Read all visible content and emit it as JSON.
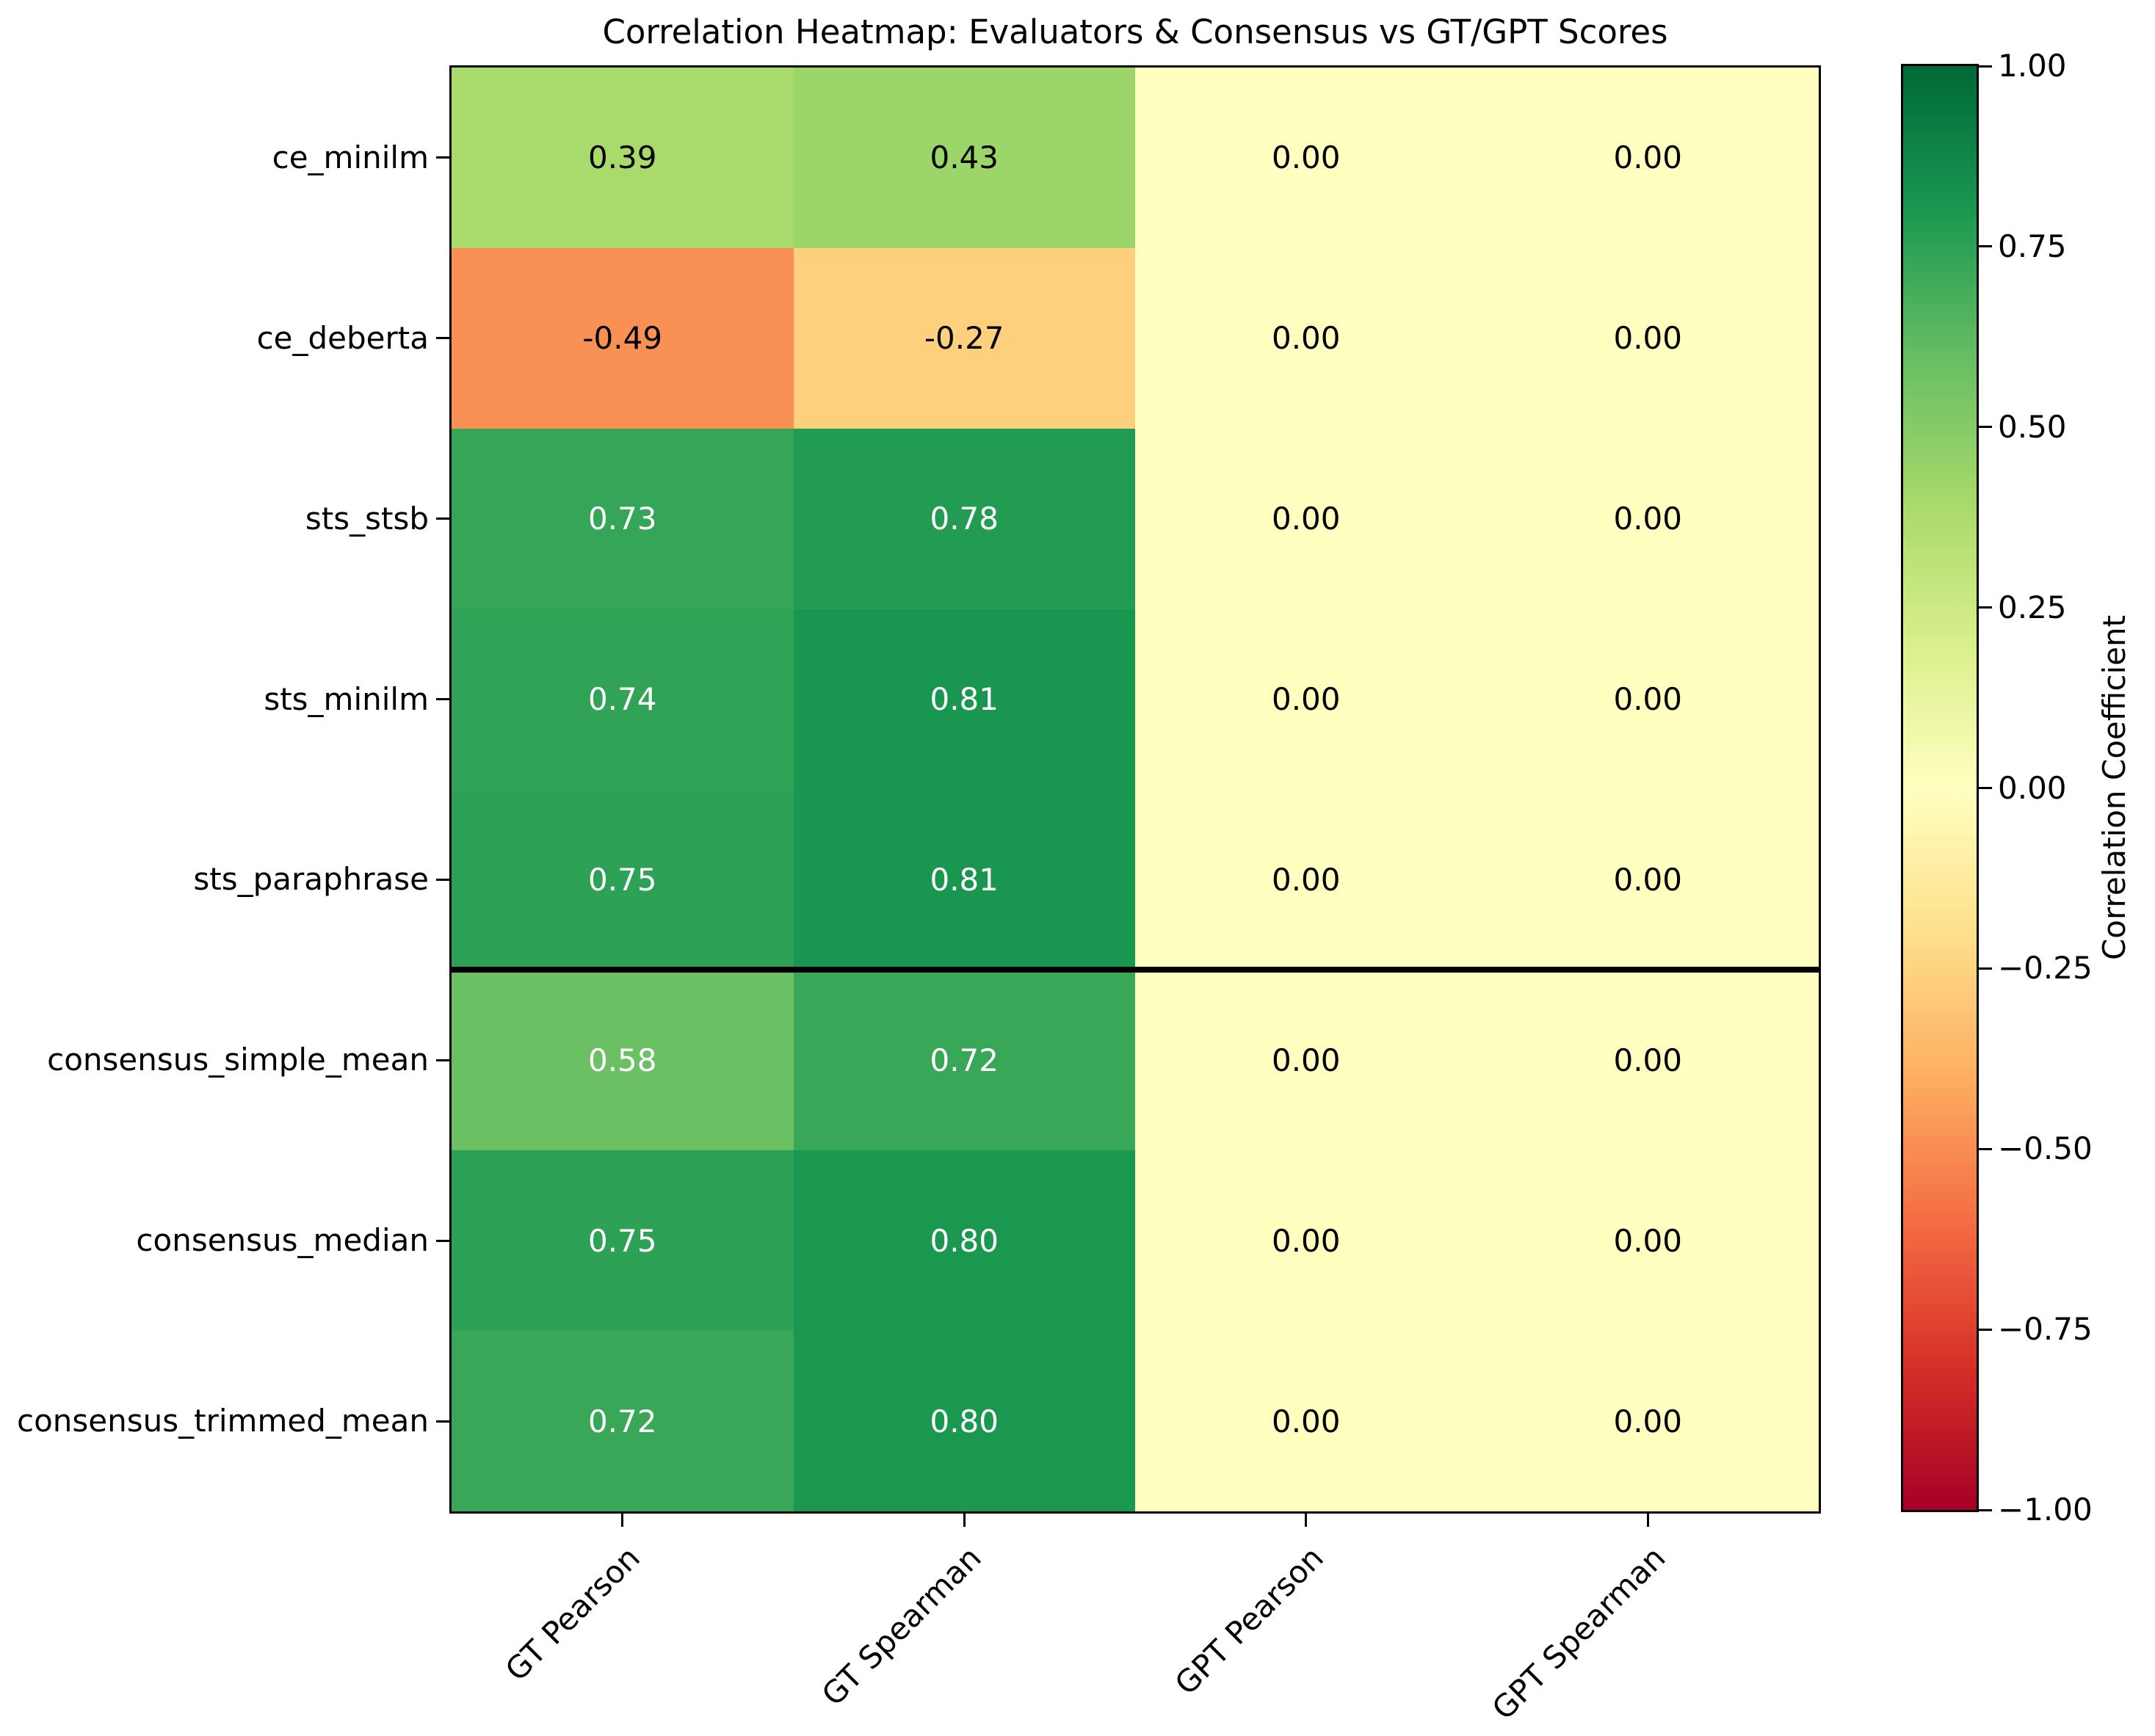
{
  "figure": {
    "title": "Correlation Heatmap: Evaluators & Consensus vs GT/GPT Scores"
  },
  "chart_data": {
    "type": "heatmap",
    "title": "Correlation Heatmap: Evaluators & Consensus vs GT/GPT Scores",
    "rows": [
      "ce_minilm",
      "ce_deberta",
      "sts_stsb",
      "sts_minilm",
      "sts_paraphrase",
      "consensus_simple_mean",
      "consensus_median",
      "consensus_trimmed_mean"
    ],
    "columns": [
      "GT Pearson",
      "GT Spearman",
      "GPT Pearson",
      "GPT Spearman"
    ],
    "values": [
      [
        0.39,
        0.43,
        0.0,
        0.0
      ],
      [
        -0.49,
        -0.27,
        0.0,
        0.0
      ],
      [
        0.73,
        0.78,
        0.0,
        0.0
      ],
      [
        0.74,
        0.81,
        0.0,
        0.0
      ],
      [
        0.75,
        0.81,
        0.0,
        0.0
      ],
      [
        0.58,
        0.72,
        0.0,
        0.0
      ],
      [
        0.75,
        0.8,
        0.0,
        0.0
      ],
      [
        0.72,
        0.8,
        0.0,
        0.0
      ]
    ],
    "vmin": -1.0,
    "vmax": 1.0,
    "colormap": "RdYlGn",
    "colormap_stops": [
      "#a50026",
      "#d73027",
      "#f46d43",
      "#fdae61",
      "#fee08b",
      "#ffffbf",
      "#d9ef8b",
      "#a6d96a",
      "#66bd63",
      "#1a9850",
      "#006837"
    ],
    "annotation_text_colors": {
      "light": "#ffffff",
      "dark": "#000000"
    },
    "separator_after_row": 5,
    "grid": false,
    "colorbar": {
      "label": "Correlation Coefficient",
      "tick_labels": [
        "1.00",
        "0.75",
        "0.50",
        "0.25",
        "0.00",
        "−0.25",
        "−0.50",
        "−0.75",
        "−1.00"
      ],
      "tick_values": [
        1.0,
        0.75,
        0.5,
        0.25,
        0.0,
        -0.25,
        -0.5,
        -0.75,
        -1.0
      ],
      "position": "right"
    }
  }
}
